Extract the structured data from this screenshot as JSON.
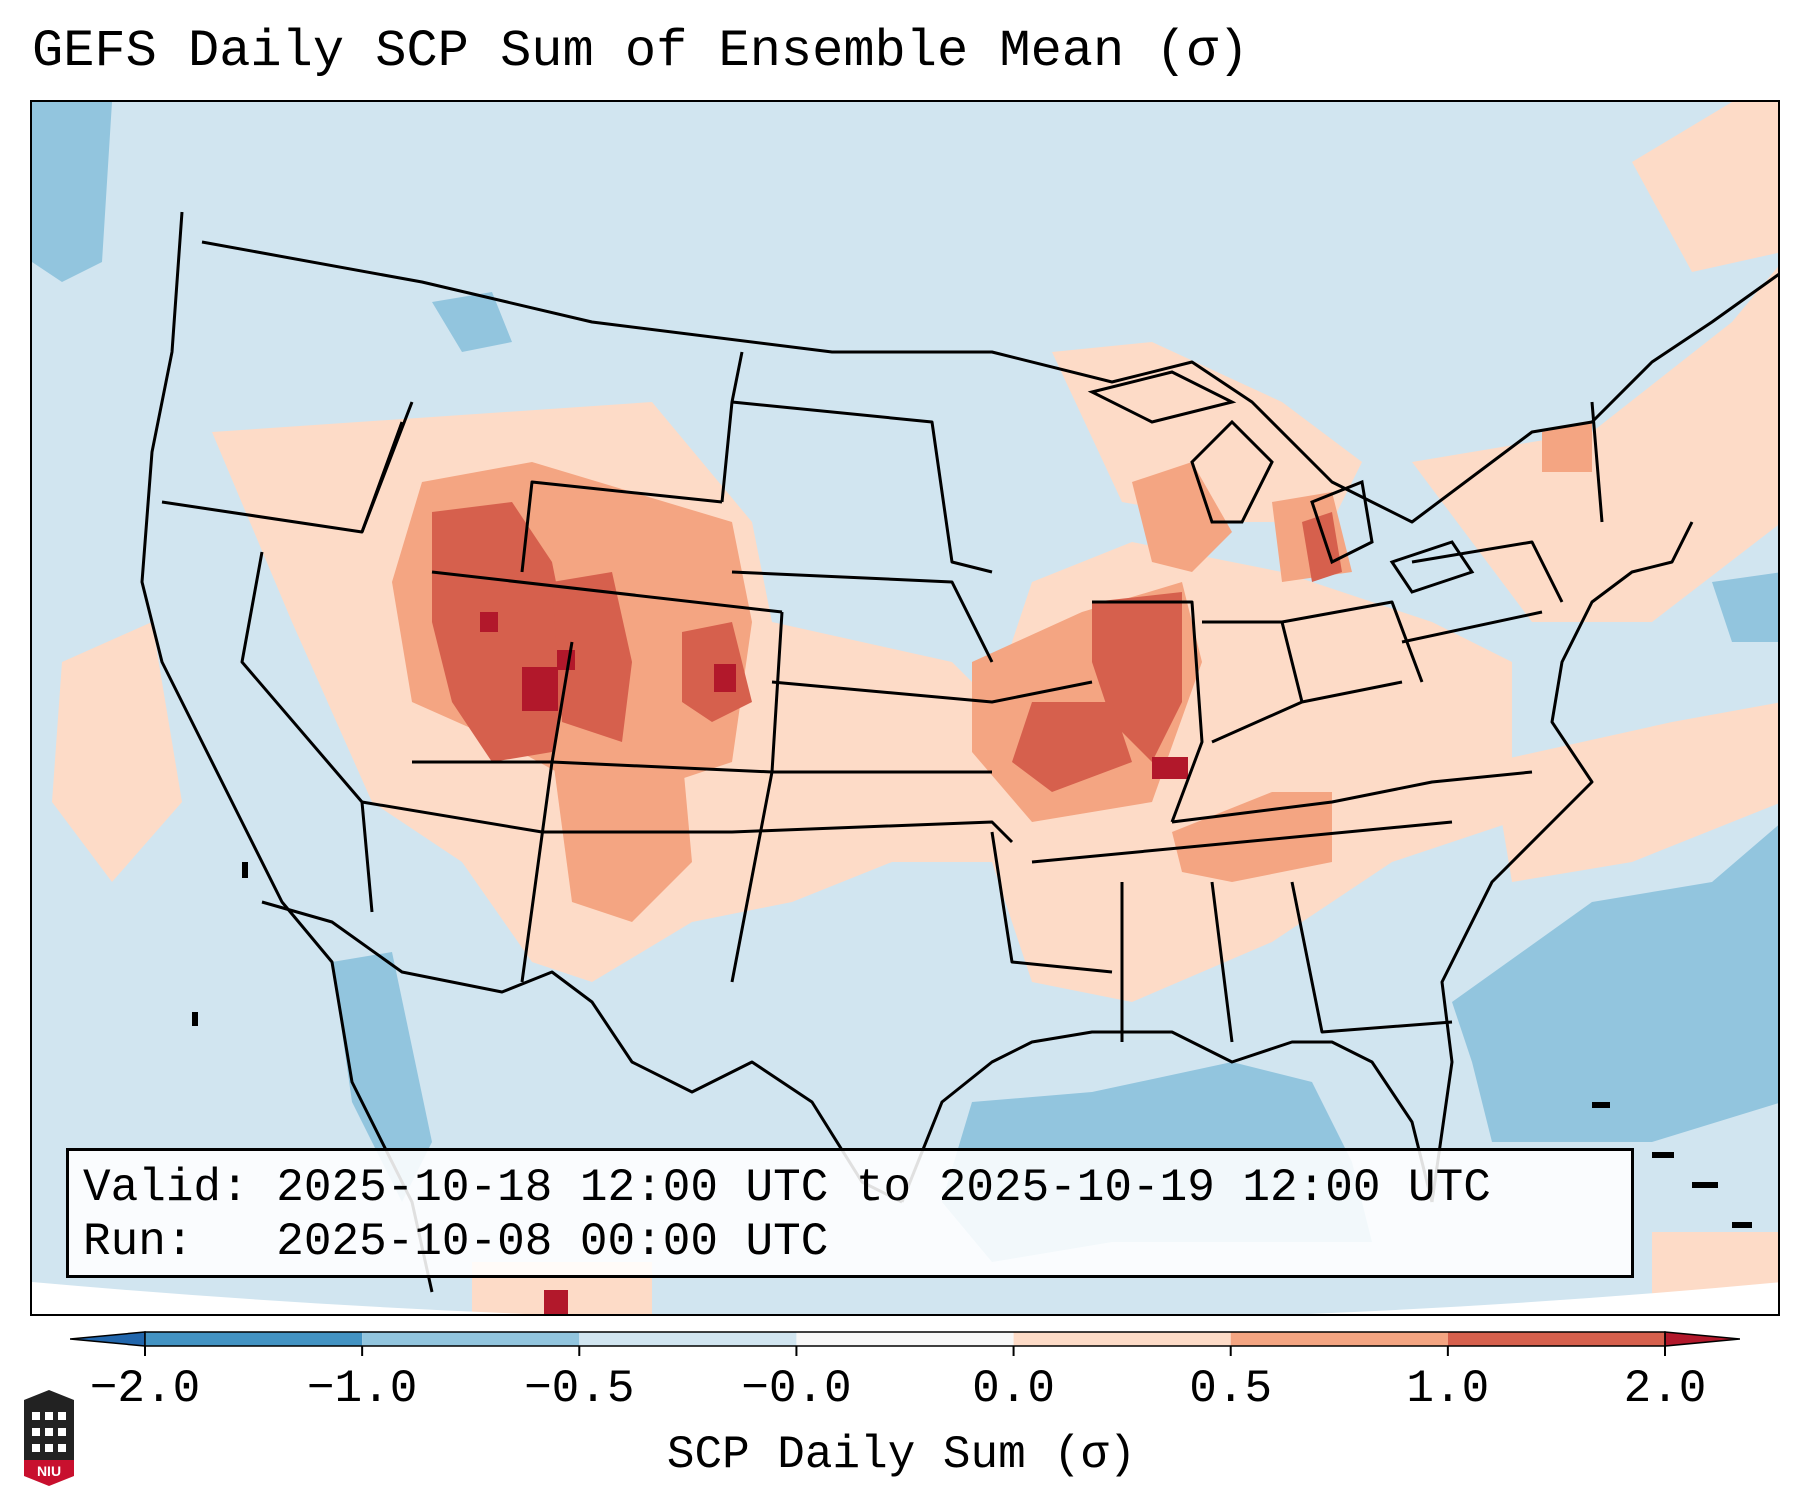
{
  "title": "GEFS Daily SCP Sum of Ensemble Mean (σ)",
  "info": {
    "valid_label": "Valid:",
    "valid_text": "2025-10-18 12:00 UTC to 2025-10-19 12:00 UTC",
    "run_label": "Run:",
    "run_text": "2025-10-08 00:00 UTC"
  },
  "colorbar": {
    "label": "SCP Daily Sum (σ)",
    "ticks": [
      "−2.0",
      "−1.0",
      "−0.5",
      "−0.0",
      "0.0",
      "0.5",
      "1.0",
      "2.0"
    ],
    "bins": [
      {
        "range": "< -2.0",
        "color": "#2166ac"
      },
      {
        "range": "-2.0 to -1.0",
        "color": "#4393c3"
      },
      {
        "range": "-1.0 to -0.5",
        "color": "#92c5de"
      },
      {
        "range": "-0.5 to -0.0",
        "color": "#d1e5f0"
      },
      {
        "range": "-0.0 to 0.0",
        "color": "#f7f7f7"
      },
      {
        "range": "0.0 to 0.5",
        "color": "#fddbc7"
      },
      {
        "range": "0.5 to 1.0",
        "color": "#f4a582"
      },
      {
        "range": "1.0 to 2.0",
        "color": "#d6604d"
      },
      {
        "range": "> 2.0",
        "color": "#b2182b"
      }
    ]
  },
  "map_colors": {
    "background": "#d1e5f0",
    "low": "#92c5de",
    "light_positive": "#fddbc7",
    "moderate_positive": "#f4a582",
    "high_positive": "#d6604d",
    "very_high_positive": "#b2182b",
    "outside_domain": "#ffffff"
  },
  "logo": {
    "text": "NIU",
    "color": "#c8102e"
  }
}
